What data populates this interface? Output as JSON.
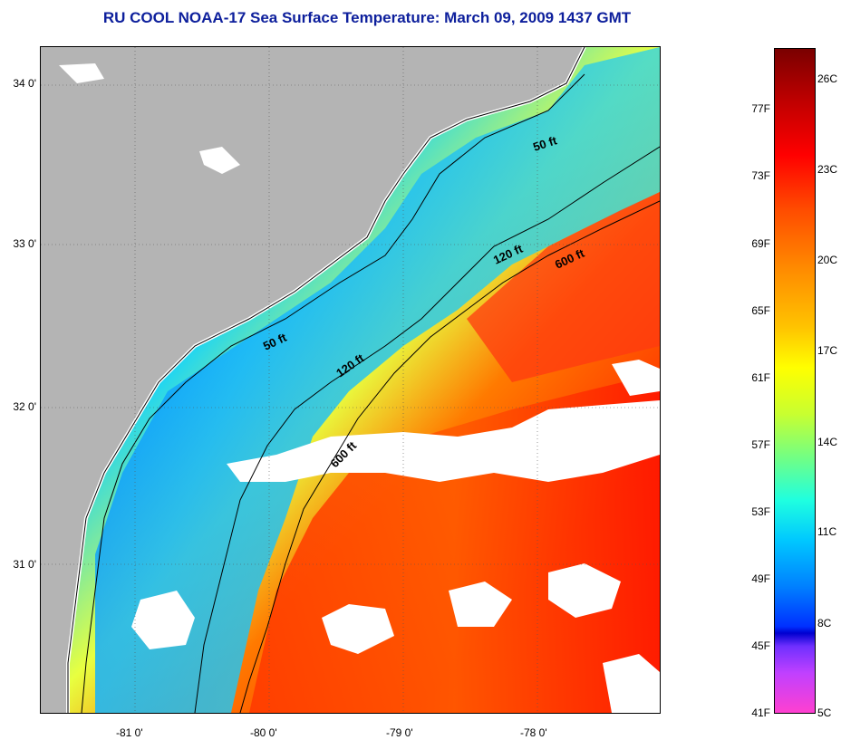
{
  "title": "RU COOL  NOAA-17  Sea Surface Temperature:  March 09, 2009 1437 GMT",
  "map": {
    "lat_labels": [
      "34 0'",
      "33 0'",
      "32 0'",
      "31 0'"
    ],
    "lon_labels": [
      "-81 0'",
      "-80 0'",
      "-79 0'",
      "-78 0'"
    ],
    "isobaths": [
      "50 ft",
      "50 ft",
      "120 ft",
      "120 ft",
      "600 ft",
      "600 ft"
    ],
    "colors": {
      "land": "#b4b4b4",
      "cloud": "#ffffff",
      "coast": "#000000"
    }
  },
  "colorbar": {
    "fahrenheit": [
      "77F",
      "73F",
      "69F",
      "65F",
      "61F",
      "57F",
      "53F",
      "49F",
      "45F",
      "41F"
    ],
    "celsius": [
      "26C",
      "23C",
      "20C",
      "17C",
      "14C",
      "11C",
      "8C",
      "5C"
    ]
  }
}
